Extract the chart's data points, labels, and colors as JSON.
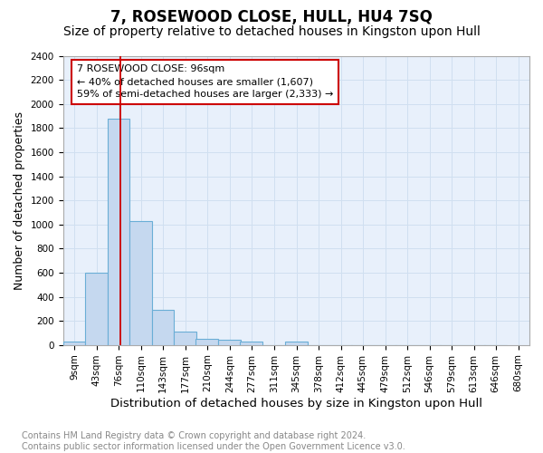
{
  "title1": "7, ROSEWOOD CLOSE, HULL, HU4 7SQ",
  "title2": "Size of property relative to detached houses in Kingston upon Hull",
  "xlabel": "Distribution of detached houses by size in Kingston upon Hull",
  "ylabel": "Number of detached properties",
  "footnote": "Contains HM Land Registry data © Crown copyright and database right 2024.\nContains public sector information licensed under the Open Government Licence v3.0.",
  "bin_edges": [
    9,
    43,
    76,
    110,
    143,
    177,
    210,
    244,
    277,
    311,
    345,
    378,
    412,
    445,
    479,
    512,
    546,
    579,
    613,
    646,
    680
  ],
  "bar_heights": [
    25,
    600,
    1880,
    1030,
    290,
    110,
    50,
    40,
    25,
    0,
    25,
    0,
    0,
    0,
    0,
    0,
    0,
    0,
    0,
    0
  ],
  "bar_color": "#c5d8ef",
  "bar_edge_color": "#6aaed6",
  "grid_color": "#d0dff0",
  "background_color": "#e8f0fb",
  "plot_bg_color": "#e8f0fb",
  "fig_bg_color": "#ffffff",
  "vline_x": 96,
  "vline_color": "#cc0000",
  "annotation_text": "7 ROSEWOOD CLOSE: 96sqm\n← 40% of detached houses are smaller (1,607)\n59% of semi-detached houses are larger (2,333) →",
  "annotation_box_facecolor": "#ffffff",
  "annotation_border_color": "#cc0000",
  "ylim": [
    0,
    2400
  ],
  "yticks": [
    0,
    200,
    400,
    600,
    800,
    1000,
    1200,
    1400,
    1600,
    1800,
    2000,
    2200,
    2400
  ],
  "title1_fontsize": 12,
  "title2_fontsize": 10,
  "xlabel_fontsize": 9.5,
  "ylabel_fontsize": 9,
  "tick_fontsize": 7.5,
  "annotation_fontsize": 8,
  "footnote_fontsize": 7,
  "footnote_color": "#888888"
}
